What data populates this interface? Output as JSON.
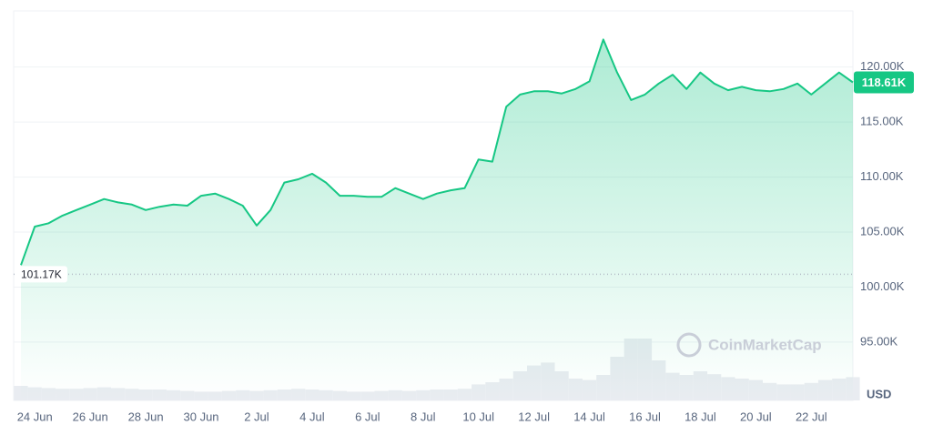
{
  "chart_data": {
    "type": "line",
    "categories": [
      null,
      "24 Jun",
      null,
      null,
      null,
      "26 Jun",
      null,
      null,
      null,
      "28 Jun",
      null,
      null,
      null,
      "30 Jun",
      null,
      null,
      null,
      "2 Jul",
      null,
      null,
      null,
      "4 Jul",
      null,
      null,
      null,
      "6 Jul",
      null,
      null,
      null,
      "8 Jul",
      null,
      null,
      null,
      "10 Jul",
      null,
      null,
      null,
      "12 Jul",
      null,
      null,
      null,
      "14 Jul",
      null,
      null,
      null,
      "16 Jul",
      null,
      null,
      null,
      "18 Jul",
      null,
      null,
      null,
      "20 Jul",
      null,
      null,
      null,
      "22 Jul",
      null,
      null,
      null
    ],
    "series": [
      {
        "color": "#16c784",
        "values": [
          102.0,
          105.5,
          105.8,
          106.5,
          107.0,
          107.5,
          108.0,
          107.7,
          107.5,
          107.0,
          107.3,
          107.5,
          107.4,
          108.3,
          108.5,
          108.0,
          107.4,
          105.6,
          107.0,
          109.5,
          109.8,
          110.3,
          109.5,
          108.3,
          108.3,
          108.2,
          108.2,
          109.0,
          108.5,
          108.0,
          108.5,
          108.8,
          109.0,
          111.6,
          111.4,
          116.4,
          117.5,
          117.8,
          117.8,
          117.6,
          118.0,
          118.7,
          122.5,
          119.5,
          117.0,
          117.5,
          118.5,
          119.3,
          118.0,
          119.5,
          118.5,
          117.9,
          118.2,
          117.9,
          117.8,
          118.0,
          118.5,
          117.5,
          118.5,
          119.5,
          118.61
        ]
      },
      {
        "type": "bar",
        "axis": "y2",
        "color": "#e9ecf1",
        "values": [
          20,
          18,
          17,
          16,
          16,
          17,
          18,
          17,
          16,
          15,
          15,
          14,
          13,
          12,
          12,
          13,
          14,
          13,
          14,
          15,
          16,
          15,
          14,
          13,
          12,
          12,
          13,
          14,
          13,
          14,
          15,
          15,
          16,
          22,
          25,
          30,
          40,
          48,
          52,
          40,
          30,
          28,
          35,
          60,
          85,
          85,
          55,
          38,
          35,
          40,
          36,
          32,
          30,
          28,
          24,
          22,
          22,
          24,
          28,
          30,
          32
        ]
      }
    ],
    "ylim": [
      89.7,
      125.1
    ],
    "yticks": [
      {
        "value": 95,
        "label": "95.00K"
      },
      {
        "value": 100,
        "label": "100.00K"
      },
      {
        "value": 105,
        "label": "105.00K"
      },
      {
        "value": 110,
        "label": "110.00K"
      },
      {
        "value": 115,
        "label": "115.00K"
      },
      {
        "value": 120,
        "label": "120.00K"
      }
    ],
    "y2lim": [
      0,
      100
    ],
    "grid": true,
    "start_label": {
      "value": 101.17,
      "label": "101.17K"
    },
    "last_label": {
      "value": 118.61,
      "label": "118.61K"
    },
    "currency": "USD",
    "watermark": "CoinMarketCap"
  }
}
